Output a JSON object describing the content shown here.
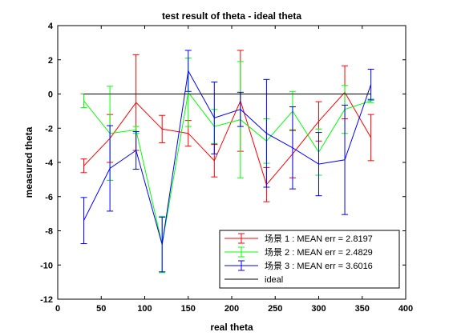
{
  "chart_data": {
    "type": "line",
    "title": "test result of theta - ideal theta",
    "xlabel": "real theta",
    "ylabel": "measured theta",
    "xlim": [
      0,
      400
    ],
    "ylim": [
      -12,
      4
    ],
    "xticks": [
      0,
      50,
      100,
      150,
      200,
      250,
      300,
      350,
      400
    ],
    "yticks": [
      -12,
      -10,
      -8,
      -6,
      -4,
      -2,
      0,
      2,
      4
    ],
    "grid": false,
    "legend_position": "bottom-right",
    "x": [
      30,
      60,
      90,
      120,
      150,
      180,
      210,
      240,
      270,
      300,
      330,
      360
    ],
    "series": [
      {
        "name": "场景 1 : MEAN err = 2.8197",
        "color": "#ff0000",
        "values": [
          -4.2,
          -2.6,
          -0.5,
          -2.05,
          -2.3,
          -3.9,
          -0.4,
          -5.3,
          -3.5,
          -1.6,
          0.1,
          -2.55
        ],
        "errors": [
          0.4,
          1.4,
          2.8,
          0.8,
          0.75,
          0.95,
          2.95,
          1.0,
          1.4,
          1.15,
          1.55,
          1.35
        ]
      },
      {
        "name": "场景 2 : MEAN err = 2.4829",
        "color": "#00ff00",
        "values": [
          -0.4,
          -2.3,
          -2.1,
          -8.8,
          0.1,
          -1.9,
          -1.5,
          -2.75,
          -1.0,
          -3.4,
          -0.9,
          -0.4
        ],
        "errors": [
          0.4,
          2.75,
          0.2,
          1.65,
          2.0,
          1.0,
          3.4,
          1.3,
          1.15,
          1.35,
          1.4,
          0.1
        ]
      },
      {
        "name": "场景 3 : MEAN err = 3.6016",
        "color": "#0000ff",
        "values": [
          -7.4,
          -4.35,
          -3.3,
          -8.8,
          1.35,
          -1.4,
          -0.9,
          -2.3,
          -3.15,
          -4.1,
          -3.85,
          0.55
        ],
        "errors": [
          1.35,
          2.5,
          1.1,
          1.6,
          1.2,
          2.1,
          1.0,
          3.15,
          2.4,
          1.85,
          3.2,
          0.9
        ]
      },
      {
        "name": "ideal",
        "color": "#000000",
        "values": [
          0,
          0,
          0,
          0,
          0,
          0,
          0,
          0,
          0,
          0,
          0,
          0
        ]
      }
    ]
  }
}
